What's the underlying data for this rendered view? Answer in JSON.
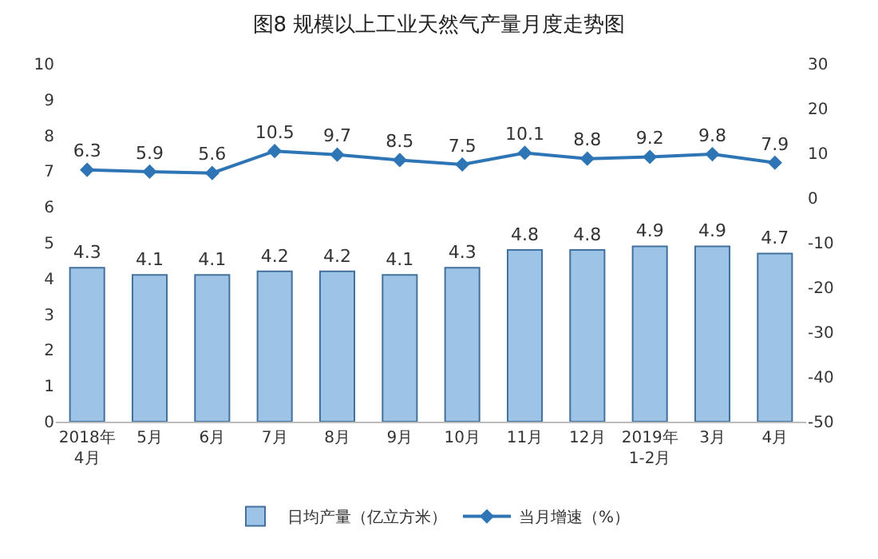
{
  "chart_data": {
    "type": "bar",
    "title": "图8 规模以上工业天然气产量月度走势图",
    "categories": [
      "2018年4月",
      "5月",
      "6月",
      "7月",
      "8月",
      "9月",
      "10月",
      "11月",
      "12月",
      "2019年1-2月",
      "3月",
      "4月"
    ],
    "series": [
      {
        "name": "日均产量（亿立方米）",
        "color": "#9dc3e6",
        "values": [
          4.3,
          4.1,
          4.1,
          4.2,
          4.2,
          4.1,
          4.3,
          4.8,
          4.8,
          4.9,
          4.9,
          4.7
        ]
      },
      {
        "name": "当月增速（%）",
        "type": "line",
        "axis": "y2",
        "color": "#2e75b6",
        "values": [
          6.3,
          5.9,
          5.6,
          10.5,
          9.7,
          8.5,
          7.5,
          10.1,
          8.8,
          9.2,
          9.8,
          7.9
        ]
      }
    ],
    "ylim": [
      0,
      10
    ],
    "yticks": [
      0,
      1,
      2,
      3,
      4,
      5,
      6,
      7,
      8,
      9,
      10
    ],
    "y2lim": [
      -50,
      30
    ],
    "y2ticks": [
      -50,
      -40,
      -30,
      -20,
      -10,
      0,
      10,
      20,
      30
    ],
    "data_labels": true,
    "grid": false,
    "legend": "bottom",
    "marker": "diamond",
    "line_style": "solid"
  }
}
